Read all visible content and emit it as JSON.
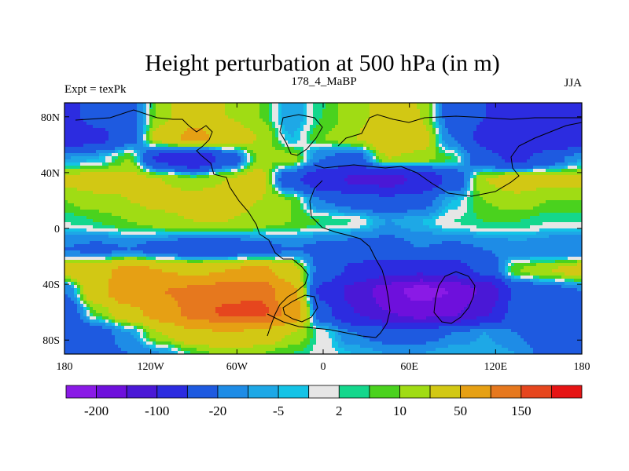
{
  "chart_data": {
    "type": "heatmap",
    "title": "Height perturbation at 500 hPa (in m)",
    "left_string": "Expt = texPk",
    "center_string": "178_4_MaBP",
    "right_string": "JJA",
    "x_ticks": [
      "180",
      "120W",
      "60W",
      "0",
      "60E",
      "120E",
      "180"
    ],
    "x_tick_values": [
      -180,
      -120,
      -60,
      0,
      60,
      120,
      180
    ],
    "y_ticks": [
      "80N",
      "40N",
      "0",
      "40S",
      "80S"
    ],
    "y_tick_values": [
      80,
      40,
      0,
      -40,
      -80
    ],
    "xlim": [
      -180,
      180
    ],
    "ylim": [
      -90,
      90
    ],
    "colorbar": {
      "labels": [
        "-200",
        "-100",
        "-20",
        "-5",
        "2",
        "10",
        "50",
        "150"
      ],
      "label_box_index": [
        1,
        3,
        5,
        7,
        9,
        11,
        13,
        15
      ],
      "colors": [
        "#8a1ae6",
        "#6e10dc",
        "#4a18d6",
        "#2c2ce0",
        "#1e5ae0",
        "#1e8ce6",
        "#1ea8e6",
        "#14c3e6",
        "#e6e6e6",
        "#14d78c",
        "#4ad21e",
        "#a0dc14",
        "#d2c814",
        "#e6a014",
        "#e6781e",
        "#e6461e",
        "#e61414"
      ]
    },
    "field_bands": [
      {
        "lat": 80,
        "values": [
          -60,
          -40,
          -25,
          15,
          40,
          20,
          10,
          -10,
          5,
          15,
          30,
          20,
          -30,
          -50,
          -80,
          -60
        ]
      },
      {
        "lat": 65,
        "values": [
          -80,
          -60,
          -30,
          30,
          60,
          40,
          20,
          -5,
          10,
          20,
          40,
          30,
          -20,
          -60,
          -100,
          -90
        ]
      },
      {
        "lat": 50,
        "values": [
          -10,
          -5,
          10,
          -60,
          -90,
          -40,
          10,
          15,
          -20,
          -30,
          20,
          15,
          5,
          -40,
          -60,
          -30
        ]
      },
      {
        "lat": 35,
        "values": [
          25,
          30,
          25,
          20,
          10,
          20,
          30,
          -40,
          -80,
          -110,
          -120,
          -90,
          -40,
          20,
          30,
          25
        ]
      },
      {
        "lat": 20,
        "values": [
          10,
          15,
          20,
          25,
          30,
          30,
          20,
          10,
          -20,
          -30,
          -40,
          -30,
          -5,
          10,
          15,
          10
        ]
      },
      {
        "lat": 5,
        "values": [
          2,
          5,
          10,
          15,
          20,
          20,
          15,
          10,
          5,
          2,
          -10,
          -5,
          2,
          5,
          5,
          2
        ]
      },
      {
        "lat": -15,
        "values": [
          -20,
          -25,
          -20,
          -30,
          -40,
          -40,
          -30,
          -20,
          -25,
          -30,
          -30,
          -20,
          -25,
          -20,
          -15,
          -20
        ]
      },
      {
        "lat": -30,
        "values": [
          30,
          40,
          60,
          50,
          40,
          50,
          60,
          30,
          -30,
          -60,
          -80,
          -90,
          -70,
          -40,
          10,
          20
        ]
      },
      {
        "lat": -45,
        "values": [
          -20,
          40,
          80,
          100,
          110,
          130,
          140,
          60,
          -60,
          -120,
          -180,
          -220,
          -200,
          -140,
          -40,
          -30
        ]
      },
      {
        "lat": -60,
        "values": [
          -40,
          10,
          40,
          70,
          120,
          160,
          170,
          80,
          -40,
          -100,
          -150,
          -180,
          -160,
          -110,
          -30,
          -20
        ]
      },
      {
        "lat": -75,
        "values": [
          -50,
          -30,
          -10,
          20,
          40,
          50,
          40,
          20,
          0,
          -20,
          -30,
          -30,
          -20,
          -10,
          -20,
          -40
        ]
      },
      {
        "lat": -90,
        "values": [
          -40,
          -30,
          -20,
          -10,
          5,
          15,
          10,
          5,
          0,
          -5,
          -10,
          -10,
          -5,
          -5,
          -10,
          -30
        ]
      }
    ]
  }
}
